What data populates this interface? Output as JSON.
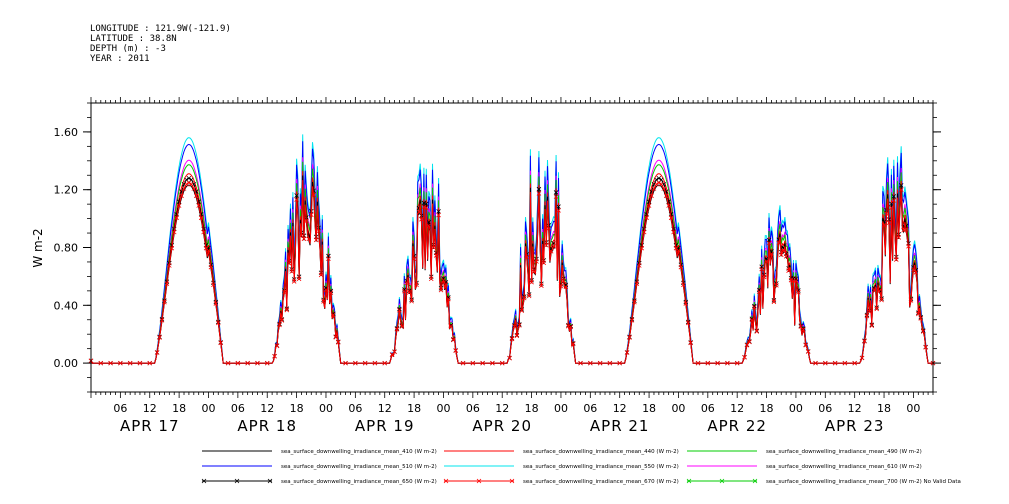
{
  "header": {
    "lines": [
      "LONGITUDE : 121.9W(-121.9)",
      "LATITUDE : 38.8N",
      "DEPTH (m) : -3",
      "YEAR : 2011"
    ]
  },
  "chart_data": {
    "type": "line",
    "title": "",
    "xlabel": "",
    "ylabel": "W m-2",
    "ylim": [
      -0.2,
      1.8
    ],
    "yticks": [
      0.0,
      0.4,
      0.8,
      1.2,
      1.6
    ],
    "ytick_labels": [
      "0.00",
      "0.40",
      "0.80",
      "1.20",
      "1.60"
    ],
    "xlim_hours": [
      0,
      172
    ],
    "hour_ticks": [
      "06",
      "12",
      "18",
      "00"
    ],
    "day_labels": [
      "APR 17",
      "APR 18",
      "APR 19",
      "APR 20",
      "APR 21",
      "APR 22",
      "APR 23"
    ],
    "grid": false,
    "legend_position": "bottom",
    "legend": [
      {
        "label": "sea_surface_downwelling_irradiance_mean_410 (W m-2)",
        "color": "#000000",
        "marker": "none"
      },
      {
        "label": "sea_surface_downwelling_irradiance_mean_440 (W m-2)",
        "color": "#ff0000",
        "marker": "none"
      },
      {
        "label": "sea_surface_downwelling_irradiance_mean_490 (W m-2)",
        "color": "#00cc00",
        "marker": "none"
      },
      {
        "label": "sea_surface_downwelling_irradiance_mean_510 (W m-2)",
        "color": "#0000ff",
        "marker": "none"
      },
      {
        "label": "sea_surface_downwelling_irradiance_mean_550 (W m-2)",
        "color": "#00e5ee",
        "marker": "none"
      },
      {
        "label": "sea_surface_downwelling_irradiance_mean_610 (W m-2)",
        "color": "#ff00ff",
        "marker": "none"
      },
      {
        "label": "sea_surface_downwelling_irradiance_mean_650 (W m-2)",
        "color": "#000000",
        "marker": "x"
      },
      {
        "label": "sea_surface_downwelling_irradiance_mean_670 (W m-2)",
        "color": "#ff0000",
        "marker": "x"
      },
      {
        "label": "sea_surface_downwelling_irradiance_mean_700 (W m-2) No Valid Data",
        "color": "#00cc00",
        "marker": "x"
      }
    ],
    "days": [
      {
        "label": "APR 17",
        "peak_550": 1.56,
        "noisy": false
      },
      {
        "label": "APR 18",
        "peak_550": 1.62,
        "noisy": true
      },
      {
        "label": "APR 19",
        "peak_550": 1.38,
        "noisy": true
      },
      {
        "label": "APR 20",
        "peak_550": 1.48,
        "noisy": true
      },
      {
        "label": "APR 21",
        "peak_550": 1.56,
        "noisy": false
      },
      {
        "label": "APR 22",
        "peak_550": 1.12,
        "noisy": true
      },
      {
        "label": "APR 23",
        "peak_550": 1.5,
        "noisy": true
      }
    ],
    "band_scale": {
      "550": 1.0,
      "510": 0.97,
      "610": 0.9,
      "490": 0.88,
      "440": 0.84,
      "650": 0.82,
      "670": 0.8,
      "410": 0.79
    }
  }
}
